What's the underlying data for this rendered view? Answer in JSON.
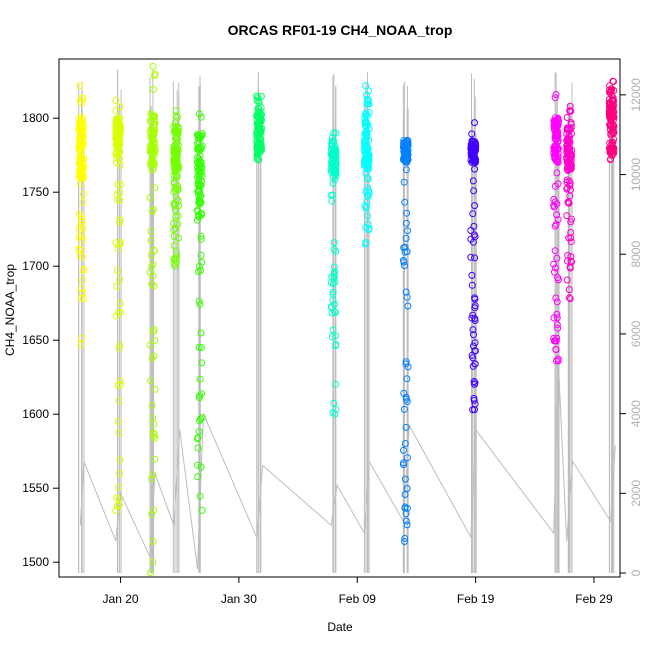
{
  "chart_data": {
    "type": "scatter",
    "title": "ORCAS RF01-19 CH4_NOAA_trop",
    "xlabel": "Date",
    "ylabel": "CH4_NOAA_trop",
    "x_ticks": [
      "Jan 20",
      "Jan 30",
      "Feb 09",
      "Feb 19",
      "Feb 29"
    ],
    "x_tick_days": [
      19,
      29,
      39,
      49,
      59
    ],
    "xlim_days": [
      13.8,
      61.2
    ],
    "ylim": [
      1490,
      1840
    ],
    "y_ticks": [
      1500,
      1550,
      1600,
      1650,
      1700,
      1750,
      1800
    ],
    "y2lim": [
      -100,
      12900
    ],
    "y2_ticks": [
      0,
      2000,
      4000,
      6000,
      8000,
      10000,
      12000
    ],
    "grid": false,
    "colors": {
      "altitude_trace": "#bdbdbd"
    },
    "flights": [
      {
        "day": 15.7,
        "min": 1647,
        "max": 1822,
        "core": [
          1755,
          1800
        ],
        "color": "#ffff00"
      },
      {
        "day": 18.8,
        "min": 1535,
        "max": 1812,
        "core": [
          1775,
          1800
        ],
        "color": "#d9ff00"
      },
      {
        "day": 21.7,
        "min": 1493,
        "max": 1835,
        "core": [
          1765,
          1805
        ],
        "color": "#a6ff00"
      },
      {
        "day": 23.7,
        "min": 1700,
        "max": 1805,
        "core": [
          1760,
          1795
        ],
        "color": "#73ff00"
      },
      {
        "day": 25.7,
        "min": 1535,
        "max": 1803,
        "core": [
          1740,
          1790
        ],
        "color": "#33ff00"
      },
      {
        "day": 30.7,
        "min": 1772,
        "max": 1815,
        "core": [
          1775,
          1805
        ],
        "color": "#00ff66"
      },
      {
        "day": 37.0,
        "min": 1600,
        "max": 1790,
        "core": [
          1760,
          1785
        ],
        "color": "#00ffcc"
      },
      {
        "day": 39.8,
        "min": 1715,
        "max": 1822,
        "core": [
          1765,
          1805
        ],
        "color": "#00ffff"
      },
      {
        "day": 43.1,
        "min": 1514,
        "max": 1785,
        "core": [
          1770,
          1785
        ],
        "color": "#0080ff"
      },
      {
        "day": 48.8,
        "min": 1603,
        "max": 1797,
        "core": [
          1770,
          1785
        ],
        "color": "#4000ff"
      },
      {
        "day": 55.8,
        "min": 1636,
        "max": 1816,
        "core": [
          1770,
          1800
        ],
        "color": "#ff00ff"
      },
      {
        "day": 56.9,
        "min": 1678,
        "max": 1808,
        "core": [
          1765,
          1795
        ],
        "color": "#ff00cc"
      },
      {
        "day": 60.5,
        "min": 1772,
        "max": 1825,
        "core": [
          1775,
          1815
        ],
        "color": "#ff0080"
      }
    ],
    "altitude_trace": {
      "x_days": [
        15.6,
        15.9,
        18.6,
        19.0,
        21.5,
        21.9,
        23.5,
        24.0,
        25.5,
        26.0,
        30.5,
        31.0,
        36.8,
        37.3,
        39.6,
        40.0,
        42.9,
        43.4,
        48.6,
        49.0,
        55.6,
        56.0,
        56.7,
        57.2,
        60.4,
        60.8
      ],
      "alt_m": [
        1200,
        2800,
        800,
        2000,
        400,
        2500,
        1200,
        3600,
        100,
        4000,
        900,
        2700,
        1200,
        2200,
        1000,
        2800,
        1300,
        3700,
        900,
        3600,
        1000,
        5200,
        800,
        2800,
        1300,
        3200
      ]
    }
  }
}
